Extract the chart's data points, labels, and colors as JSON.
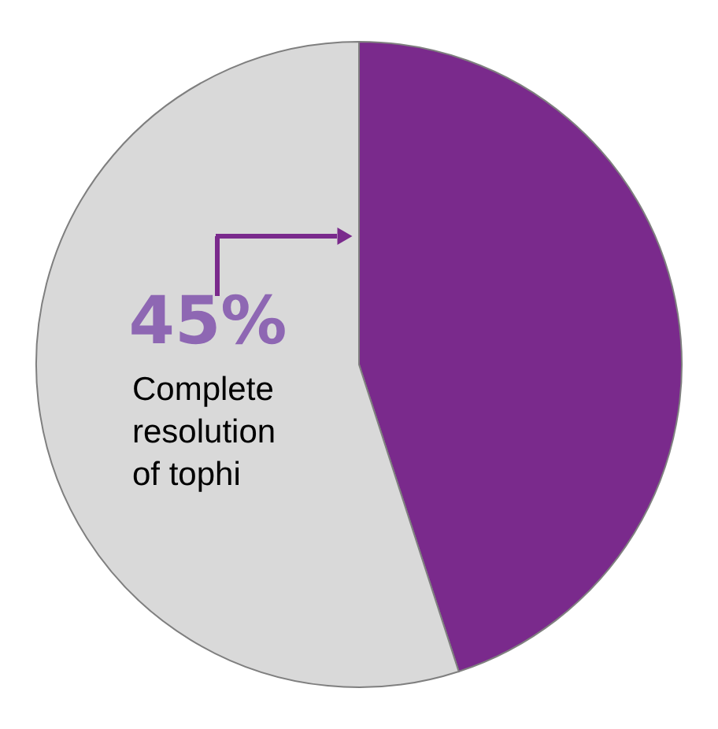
{
  "chart_data": {
    "type": "pie",
    "categories": [
      null,
      null
    ],
    "values": [
      45,
      55
    ],
    "colors": [
      "#7a2a8c",
      "#d9d9d9"
    ],
    "annotations": [
      "45%",
      "Complete resolution of tophi"
    ]
  }
}
